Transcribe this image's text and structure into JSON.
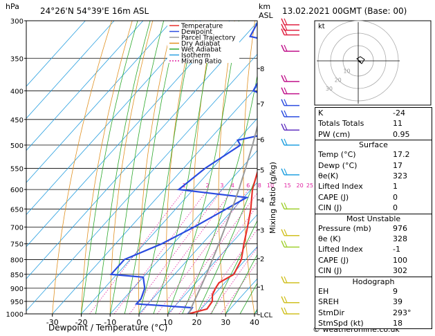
{
  "header": {
    "location": "24°26'N  54°39'E  16m  ASL",
    "datetime": "13.02.2021  00GMT  (Base: 00)",
    "p_unit": "hPa",
    "km_unit_1": "km",
    "km_unit_2": "ASL"
  },
  "chart_data": {
    "type": "skew-t",
    "title": "24°26'N  54°39'E  16m  ASL",
    "xlabel": "Dewpoint / Temperature (°C)",
    "ylabel": "hPa",
    "right_label": "Mixing Ratio (g/kg)",
    "pressure_ticks": [
      300,
      350,
      400,
      450,
      500,
      550,
      600,
      650,
      700,
      750,
      800,
      850,
      900,
      950,
      1000
    ],
    "temperature_ticks": [
      -30,
      -20,
      -10,
      0,
      10,
      20,
      30,
      40
    ],
    "xlim": [
      -35,
      40
    ],
    "ylim": [
      1000,
      300
    ],
    "km_ticks": [
      {
        "label": "8",
        "p": 365
      },
      {
        "label": "7",
        "p": 422
      },
      {
        "label": "6",
        "p": 488
      },
      {
        "label": "5",
        "p": 553
      },
      {
        "label": "4",
        "p": 626
      },
      {
        "label": "3",
        "p": 708
      },
      {
        "label": "2",
        "p": 797
      },
      {
        "label": "1",
        "p": 896
      },
      {
        "label": "LCL",
        "p": 1003
      }
    ],
    "mixing_ratio_labels": [
      "1",
      "2",
      "3",
      "4",
      "6",
      "8",
      "10",
      "15",
      "20",
      "25"
    ],
    "legend": [
      "Temperature",
      "Dewpoint",
      "Parcel Trajectory",
      "Dry Adiabat",
      "Wet Adiabat",
      "Isotherm",
      "Mixing Ratio"
    ],
    "legend_colors": [
      "#e8302a",
      "#2a4be0",
      "#9a9a9a",
      "#e09020",
      "#2aa82a",
      "#2aa0e0",
      "#e020a0"
    ],
    "series": [
      {
        "name": "Temperature",
        "color": "#e8302a",
        "points": [
          {
            "p": 1000,
            "t": 17.2
          },
          {
            "p": 980,
            "t": 22.0
          },
          {
            "p": 950,
            "t": 21.5
          },
          {
            "p": 925,
            "t": 19.5
          },
          {
            "p": 900,
            "t": 18.5
          },
          {
            "p": 880,
            "t": 18.0
          },
          {
            "p": 850,
            "t": 20.5
          },
          {
            "p": 800,
            "t": 18.5
          },
          {
            "p": 750,
            "t": 14.5
          },
          {
            "p": 700,
            "t": 10.5
          },
          {
            "p": 650,
            "t": 6.0
          },
          {
            "p": 600,
            "t": 0.5
          },
          {
            "p": 550,
            "t": -4.0
          },
          {
            "p": 500,
            "t": -8.0
          },
          {
            "p": 450,
            "t": -13.0
          },
          {
            "p": 400,
            "t": -18.5
          },
          {
            "p": 350,
            "t": -26.0
          },
          {
            "p": 300,
            "t": -33.0
          }
        ]
      },
      {
        "name": "Dewpoint",
        "color": "#2a4be0",
        "points": [
          {
            "p": 1000,
            "t": 17.0
          },
          {
            "p": 975,
            "t": 16.5
          },
          {
            "p": 960,
            "t": -4.0
          },
          {
            "p": 940,
            "t": -4.0
          },
          {
            "p": 900,
            "t": -6.0
          },
          {
            "p": 860,
            "t": -10.0
          },
          {
            "p": 850,
            "t": -22.0
          },
          {
            "p": 800,
            "t": -22.0
          },
          {
            "p": 750,
            "t": -14.0
          },
          {
            "p": 700,
            "t": -8.0
          },
          {
            "p": 650,
            "t": -2.5
          },
          {
            "p": 620,
            "t": 1.0
          },
          {
            "p": 600,
            "t": -25.0
          },
          {
            "p": 550,
            "t": -22.5
          },
          {
            "p": 500,
            "t": -17.5
          },
          {
            "p": 490,
            "t": -20.0
          },
          {
            "p": 470,
            "t": -7.0
          },
          {
            "p": 450,
            "t": -8.0
          },
          {
            "p": 420,
            "t": -16.0
          },
          {
            "p": 400,
            "t": -30.0
          },
          {
            "p": 350,
            "t": -34.0
          },
          {
            "p": 330,
            "t": -34.0
          },
          {
            "p": 320,
            "t": -48.0
          },
          {
            "p": 300,
            "t": -50.0
          }
        ]
      },
      {
        "name": "Parcel Trajectory",
        "color": "#9a9a9a",
        "points": [
          {
            "p": 1000,
            "t": 17.2
          },
          {
            "p": 950,
            "t": 15.2
          },
          {
            "p": 900,
            "t": 13.2
          },
          {
            "p": 850,
            "t": 11.0
          },
          {
            "p": 800,
            "t": 8.5
          },
          {
            "p": 750,
            "t": 5.8
          },
          {
            "p": 700,
            "t": 2.8
          },
          {
            "p": 650,
            "t": -0.5
          },
          {
            "p": 600,
            "t": -4.2
          },
          {
            "p": 550,
            "t": -8.5
          },
          {
            "p": 500,
            "t": -13.3
          },
          {
            "p": 450,
            "t": -19.0
          },
          {
            "p": 400,
            "t": -25.8
          },
          {
            "p": 350,
            "t": -33.8
          },
          {
            "p": 300,
            "t": -43.0
          }
        ]
      }
    ],
    "hodograph": {
      "unit": "kt",
      "ring_labels": [
        "10",
        "20",
        "30"
      ]
    }
  },
  "indices": {
    "rows_top": [
      {
        "label": "K",
        "value": "-24"
      },
      {
        "label": "Totals Totals",
        "value": "11"
      },
      {
        "label": "PW (cm)",
        "value": "0.95"
      }
    ],
    "surface": {
      "title": "Surface",
      "rows": [
        {
          "label": "Temp (°C)",
          "value": "17.2"
        },
        {
          "label": "Dewp (°C)",
          "value": "17"
        },
        {
          "label": "θe(K)",
          "value": "323"
        },
        {
          "label": "Lifted Index",
          "value": "1"
        },
        {
          "label": "CAPE (J)",
          "value": "0"
        },
        {
          "label": "CIN (J)",
          "value": "0"
        }
      ]
    },
    "unstable": {
      "title": "Most Unstable",
      "rows": [
        {
          "label": "Pressure (mb)",
          "value": "976"
        },
        {
          "label": "θe (K)",
          "value": "328"
        },
        {
          "label": "Lifted Index",
          "value": "-1"
        },
        {
          "label": "CAPE (J)",
          "value": "100"
        },
        {
          "label": "CIN (J)",
          "value": "302"
        }
      ]
    },
    "hodograph": {
      "title": "Hodograph",
      "rows": [
        {
          "label": "EH",
          "value": "9"
        },
        {
          "label": "SREH",
          "value": "39"
        },
        {
          "label": "StmDir",
          "value": "293°"
        },
        {
          "label": "StmSpd (kt)",
          "value": "18"
        }
      ]
    }
  },
  "footer": {
    "copyright": "© weatheronline.co.uk"
  }
}
